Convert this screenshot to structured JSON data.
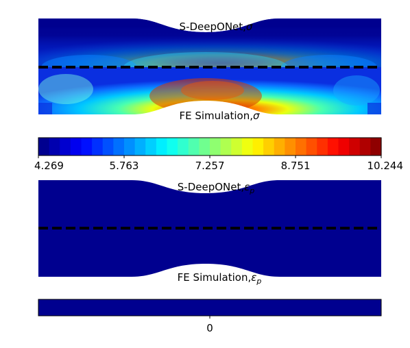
{
  "colors": {
    "shape_dark": "#00008f",
    "dash": "#000000",
    "background": "#ffffff"
  },
  "chart_data": [
    {
      "type": "heatmap",
      "colormap": "jet",
      "panels": [
        {
          "label": "S-DeepONet,",
          "symbol": "σ",
          "sub": "",
          "position": "top"
        },
        {
          "label": "FE Simulation,",
          "symbol": "σ",
          "sub": "",
          "position": "bottom"
        }
      ],
      "colorbar": {
        "range": [
          4.269,
          10.244
        ],
        "ticks": [
          4.269,
          5.763,
          7.257,
          8.751,
          10.244
        ],
        "tick_labels": [
          "4.269",
          "5.763",
          "7.257",
          "8.751",
          "10.244"
        ],
        "levels": 32
      }
    },
    {
      "type": "heatmap",
      "colormap": "jet",
      "panels": [
        {
          "label": "S-DeepONet,",
          "symbol": "ε",
          "sub": "p",
          "position": "top"
        },
        {
          "label": "FE Simulation,",
          "symbol": "ε",
          "sub": "p",
          "position": "bottom"
        }
      ],
      "colorbar": {
        "ticks": [
          0
        ],
        "tick_labels": [
          "0"
        ],
        "levels": 1
      }
    }
  ]
}
